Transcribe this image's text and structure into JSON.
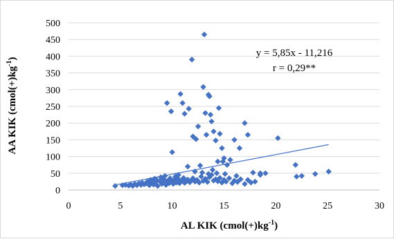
{
  "chart_data": {
    "type": "scatter",
    "title": "",
    "xlabel_main": "AL KIK (cmol(+)kg",
    "xlabel_sup": "-1",
    "xlabel_end": ")",
    "ylabel_main": "AA KIK (cmol(+)kg",
    "ylabel_sup": "-1",
    "ylabel_end": ")",
    "xlim": [
      0,
      30
    ],
    "ylim": [
      0,
      500
    ],
    "x_ticks": [
      "0",
      "5",
      "10",
      "15",
      "20",
      "25",
      "30"
    ],
    "y_ticks": [
      "0",
      "50",
      "100",
      "150",
      "200",
      "250",
      "300",
      "350",
      "400",
      "450",
      "500"
    ],
    "grid": "horizontal",
    "marker_color": "#4472c4",
    "trendline_color": "#4472c4",
    "trendline": {
      "slope": 5.85,
      "intercept": -11.216,
      "x_start": 4.5,
      "x_end": 25.1
    },
    "annotations": [
      "y = 5,85x - 11,216",
      "r = 0,29**"
    ],
    "points": [
      [
        4.5,
        12
      ],
      [
        5.2,
        14
      ],
      [
        5.5,
        15
      ],
      [
        5.8,
        13
      ],
      [
        6.0,
        16
      ],
      [
        6.2,
        12
      ],
      [
        6.4,
        18
      ],
      [
        6.6,
        14
      ],
      [
        6.8,
        20
      ],
      [
        7.0,
        15
      ],
      [
        7.1,
        22
      ],
      [
        7.3,
        17
      ],
      [
        7.5,
        19
      ],
      [
        7.6,
        25
      ],
      [
        7.8,
        14
      ],
      [
        8.0,
        21
      ],
      [
        8.1,
        28
      ],
      [
        8.2,
        16
      ],
      [
        8.4,
        23
      ],
      [
        8.5,
        30
      ],
      [
        8.6,
        12
      ],
      [
        8.8,
        26
      ],
      [
        9.0,
        18
      ],
      [
        9.1,
        24
      ],
      [
        9.2,
        32
      ],
      [
        9.4,
        15
      ],
      [
        9.5,
        22
      ],
      [
        9.6,
        28
      ],
      [
        9.7,
        20
      ],
      [
        9.8,
        35
      ],
      [
        10.0,
        25
      ],
      [
        10.1,
        18
      ],
      [
        10.2,
        30
      ],
      [
        10.3,
        40
      ],
      [
        10.4,
        22
      ],
      [
        10.5,
        27
      ],
      [
        10.6,
        33
      ],
      [
        10.7,
        20
      ],
      [
        10.8,
        24
      ],
      [
        11.0,
        29
      ],
      [
        11.1,
        36
      ],
      [
        11.2,
        21
      ],
      [
        11.4,
        26
      ],
      [
        11.5,
        31
      ],
      [
        11.7,
        23
      ],
      [
        11.8,
        28
      ],
      [
        12.0,
        35
      ],
      [
        12.2,
        25
      ],
      [
        12.4,
        30
      ],
      [
        12.6,
        22
      ],
      [
        12.8,
        40
      ],
      [
        13.0,
        27
      ],
      [
        13.2,
        33
      ],
      [
        13.4,
        24
      ],
      [
        13.6,
        38
      ],
      [
        13.8,
        45
      ],
      [
        14.0,
        28
      ],
      [
        14.2,
        32
      ],
      [
        14.4,
        26
      ],
      [
        14.6,
        36
      ],
      [
        14.8,
        22
      ],
      [
        15.0,
        30
      ],
      [
        15.2,
        25
      ],
      [
        15.5,
        35
      ],
      [
        15.8,
        20
      ],
      [
        16.0,
        28
      ],
      [
        16.3,
        24
      ],
      [
        16.6,
        32
      ],
      [
        17.0,
        18
      ],
      [
        17.3,
        30
      ],
      [
        17.6,
        22
      ],
      [
        18.0,
        25
      ],
      [
        18.5,
        45
      ],
      [
        19.0,
        50
      ],
      [
        22.0,
        40
      ],
      [
        22.5,
        42
      ],
      [
        23.8,
        48
      ],
      [
        25.1,
        55
      ],
      [
        9.5,
        260
      ],
      [
        9.9,
        235
      ],
      [
        10.0,
        113
      ],
      [
        10.8,
        287
      ],
      [
        11.0,
        260
      ],
      [
        11.2,
        228
      ],
      [
        11.6,
        243
      ],
      [
        11.9,
        390
      ],
      [
        12.0,
        160
      ],
      [
        12.3,
        152
      ],
      [
        12.5,
        190
      ],
      [
        12.7,
        73
      ],
      [
        13.0,
        308
      ],
      [
        13.1,
        465
      ],
      [
        13.2,
        230
      ],
      [
        13.3,
        165
      ],
      [
        13.5,
        285
      ],
      [
        13.6,
        280
      ],
      [
        13.7,
        225
      ],
      [
        13.8,
        205
      ],
      [
        14.0,
        175
      ],
      [
        14.2,
        148
      ],
      [
        14.4,
        85
      ],
      [
        14.5,
        245
      ],
      [
        14.6,
        168
      ],
      [
        14.8,
        125
      ],
      [
        15.0,
        95
      ],
      [
        15.3,
        75
      ],
      [
        15.6,
        90
      ],
      [
        16.0,
        150
      ],
      [
        16.5,
        125
      ],
      [
        17.0,
        200
      ],
      [
        17.3,
        165
      ],
      [
        17.8,
        52
      ],
      [
        18.5,
        50
      ],
      [
        20.2,
        155
      ],
      [
        21.9,
        75
      ],
      [
        11.5,
        70
      ],
      [
        12.2,
        55
      ],
      [
        13.9,
        60
      ],
      [
        14.3,
        50
      ],
      [
        15.1,
        48
      ],
      [
        16.2,
        42
      ],
      [
        13.5,
        48
      ],
      [
        12.9,
        52
      ],
      [
        14.9,
        85
      ],
      [
        10.6,
        45
      ],
      [
        9.3,
        42
      ],
      [
        8.9,
        38
      ],
      [
        8.3,
        34
      ],
      [
        7.9,
        30
      ]
    ]
  }
}
